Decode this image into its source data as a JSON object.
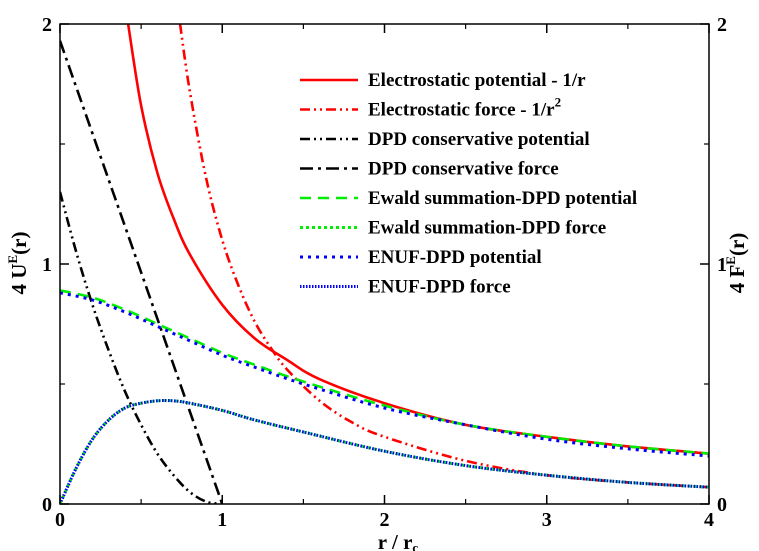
{
  "chart_data": {
    "type": "line",
    "xlabel": "r / r",
    "xlabel_sub": "c",
    "ylabel_left": "4 U",
    "ylabel_left_sup": "E",
    "ylabel_left_tail": "(r)",
    "ylabel_right": "4 F",
    "ylabel_right_sup": "E",
    "ylabel_right_tail": "(r)",
    "xlim": [
      0,
      4
    ],
    "ylim": [
      0,
      2
    ],
    "x_ticks": [
      "0",
      "1",
      "2",
      "3",
      "4"
    ],
    "y_ticks_left": [
      "0",
      "1",
      "2"
    ],
    "y_ticks_right": [
      "0",
      "1",
      "2"
    ],
    "legend_position": "top-right",
    "grid": false,
    "series": [
      {
        "name": "Electrostatic potential - 1/r",
        "color": "#ff0000",
        "style": "solid",
        "x": [
          0.42,
          0.5,
          0.6,
          0.7,
          0.8,
          1.0,
          1.2,
          1.4,
          1.6,
          2.0,
          2.5,
          3.0,
          3.5,
          4.0
        ],
        "y": [
          2.0,
          1.66,
          1.38,
          1.19,
          1.04,
          0.83,
          0.69,
          0.6,
          0.52,
          0.42,
          0.33,
          0.28,
          0.24,
          0.21
        ]
      },
      {
        "name": "Electrostatic force - 1/r",
        "name_sup": "2",
        "color": "#ff0000",
        "style": "dashdotdot",
        "x": [
          0.74,
          0.8,
          0.9,
          1.0,
          1.1,
          1.2,
          1.3,
          1.4,
          1.6,
          1.8,
          2.0,
          2.5,
          3.0,
          3.5,
          4.0
        ],
        "y": [
          2.0,
          1.72,
          1.36,
          1.1,
          0.91,
          0.76,
          0.65,
          0.56,
          0.43,
          0.34,
          0.28,
          0.18,
          0.12,
          0.09,
          0.07
        ]
      },
      {
        "name": "DPD conservative potential",
        "color": "#000000",
        "style": "dashdotdot",
        "x": [
          0,
          0.1,
          0.2,
          0.3,
          0.4,
          0.5,
          0.6,
          0.7,
          0.8,
          0.9,
          1.0
        ],
        "y": [
          1.3,
          1.05,
          0.83,
          0.64,
          0.47,
          0.33,
          0.21,
          0.12,
          0.05,
          0.01,
          0.0
        ]
      },
      {
        "name": "DPD conservative force",
        "color": "#000000",
        "style": "dashdot",
        "x": [
          0,
          1.0
        ],
        "y": [
          1.93,
          0.0
        ]
      },
      {
        "name": "Ewald summation-DPD potential",
        "color": "#00ee00",
        "style": "dashed",
        "x": [
          0,
          0.2,
          0.4,
          0.6,
          0.8,
          1.0,
          1.2,
          1.5,
          2.0,
          2.5,
          3.0,
          3.5,
          4.0
        ],
        "y": [
          0.89,
          0.86,
          0.81,
          0.75,
          0.69,
          0.63,
          0.58,
          0.51,
          0.41,
          0.33,
          0.28,
          0.24,
          0.21
        ]
      },
      {
        "name": "Ewald summation-DPD force",
        "color": "#00ee00",
        "style": "dotted",
        "x": [
          0,
          0.1,
          0.2,
          0.3,
          0.4,
          0.5,
          0.6,
          0.7,
          0.8,
          1.0,
          1.2,
          1.5,
          2.0,
          2.5,
          3.0,
          3.5,
          4.0
        ],
        "y": [
          0.0,
          0.15,
          0.27,
          0.35,
          0.4,
          0.42,
          0.43,
          0.43,
          0.42,
          0.39,
          0.35,
          0.3,
          0.22,
          0.16,
          0.12,
          0.09,
          0.07
        ]
      },
      {
        "name": "ENUF-DPD potential",
        "color": "#0000ff",
        "style": "dotted-sparse",
        "x": [
          0,
          0.2,
          0.4,
          0.6,
          0.8,
          1.0,
          1.2,
          1.5,
          2.0,
          2.5,
          3.0,
          3.5,
          4.0
        ],
        "y": [
          0.88,
          0.85,
          0.8,
          0.74,
          0.68,
          0.62,
          0.57,
          0.5,
          0.4,
          0.33,
          0.27,
          0.23,
          0.2
        ]
      },
      {
        "name": "ENUF-DPD force",
        "color": "#0000ff",
        "style": "dotted-dense",
        "x": [
          0,
          0.1,
          0.2,
          0.3,
          0.4,
          0.5,
          0.6,
          0.7,
          0.8,
          1.0,
          1.2,
          1.5,
          2.0,
          2.5,
          3.0,
          3.5,
          4.0
        ],
        "y": [
          0.0,
          0.15,
          0.27,
          0.35,
          0.4,
          0.42,
          0.43,
          0.43,
          0.42,
          0.39,
          0.35,
          0.3,
          0.22,
          0.16,
          0.12,
          0.09,
          0.07
        ]
      }
    ]
  }
}
